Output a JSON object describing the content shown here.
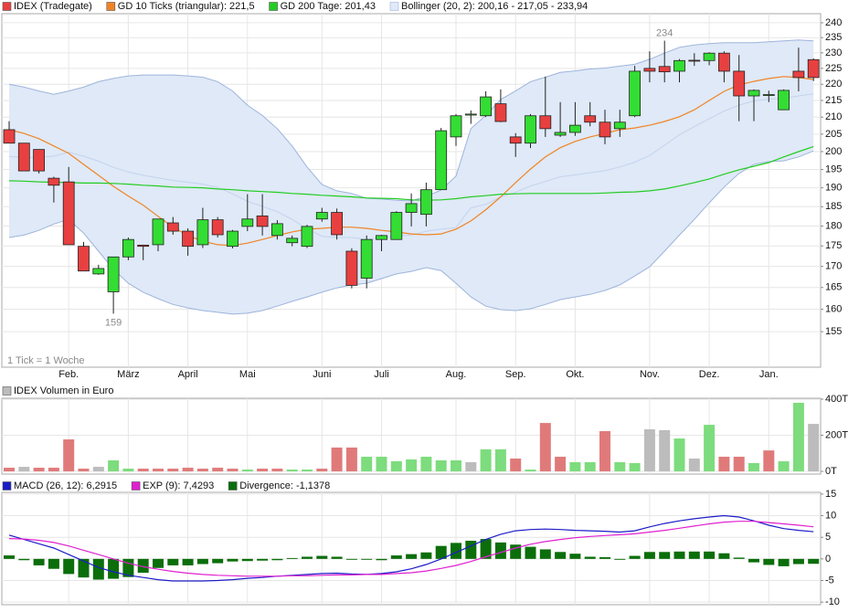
{
  "chart_data": [
    {
      "type": "candlestick",
      "log_scale": true,
      "grid": true,
      "annotate_extremes": true,
      "note": "1 Tick = 1 Woche",
      "categories": [
        null,
        null,
        null,
        null,
        "Feb.",
        null,
        null,
        null,
        "März",
        null,
        null,
        null,
        "April",
        null,
        null,
        null,
        "Mai",
        null,
        null,
        null,
        null,
        "Juni",
        null,
        null,
        null,
        "Juli",
        null,
        null,
        null,
        null,
        "Aug.",
        null,
        null,
        null,
        "Sep.",
        null,
        null,
        null,
        "Okt.",
        null,
        null,
        null,
        null,
        "Nov.",
        null,
        null,
        null,
        "Dez.",
        null,
        null,
        null,
        "Jan.",
        null,
        null,
        null
      ],
      "ylim": [
        147.4,
        243.1
      ],
      "yticks": [
        155,
        160,
        165,
        170,
        175,
        180,
        185,
        190,
        195,
        200,
        205,
        210,
        215,
        220,
        225,
        230,
        235,
        240
      ],
      "series": [
        {
          "name": "IDEX (Tradegate)",
          "kind": "candle",
          "up_color": "#33dd33",
          "down_color": "#e84040",
          "open": [
            206.3,
            202.4,
            200.6,
            192.6,
            191.6,
            174.9,
            168.2,
            164,
            172.3,
            175.2,
            175.3,
            180.8,
            178.7,
            175.3,
            181.6,
            174.9,
            179.9,
            182.6,
            177.6,
            175.8,
            174.9,
            181.8,
            183.5,
            173.7,
            167.2,
            176.6,
            176.6,
            183.5,
            183,
            189.5,
            204.2,
            210.6,
            210.4,
            214,
            204.2,
            202.4,
            210.4,
            204.7,
            205.5,
            210.4,
            208.5,
            206.6,
            210.4,
            225,
            225.6,
            224.1,
            227.6,
            227.5,
            229.9,
            224.1,
            216.4,
            216.6,
            212.2,
            224.1,
            227.8
          ],
          "high": [
            208.8,
            202.4,
            200.6,
            193,
            195.7,
            176,
            170.4,
            172.3,
            177.1,
            175.3,
            181.8,
            182.3,
            179.4,
            184.7,
            182.3,
            179,
            188.3,
            188.3,
            181.5,
            177.6,
            180.3,
            184.7,
            184.5,
            174.4,
            177.6,
            177.8,
            183.8,
            188.5,
            191.4,
            206.8,
            210.9,
            212,
            217.8,
            218.4,
            205.3,
            210.9,
            222.4,
            214.5,
            214.5,
            214.5,
            212.2,
            212.2,
            225.8,
            230.5,
            234,
            228,
            229.9,
            230.2,
            230.5,
            229.3,
            218.4,
            218,
            218.4,
            231.7,
            228.2
          ],
          "low": [
            202.4,
            194.6,
            193.9,
            186.1,
            175.3,
            168.9,
            168,
            159,
            171.5,
            171.5,
            173.7,
            177.8,
            172.6,
            174.5,
            177.1,
            174.4,
            178.7,
            177.6,
            176.6,
            174.9,
            174.5,
            181.1,
            176.6,
            164.8,
            164.8,
            173.7,
            176.6,
            179.9,
            179.9,
            189.5,
            201.6,
            208,
            210,
            208.5,
            198.5,
            201,
            204.2,
            204.2,
            204.5,
            207.3,
            202.1,
            204.2,
            210,
            220.6,
            220.6,
            220.6,
            225.8,
            226,
            220.6,
            208.8,
            208.8,
            214.5,
            212.2,
            217.8,
            221
          ],
          "close": [
            202.4,
            194.6,
            194.6,
            190.7,
            175.3,
            168.9,
            169.5,
            172.3,
            176.6,
            174.9,
            181.8,
            178.7,
            174.9,
            181.6,
            177.8,
            178.7,
            181.8,
            179.9,
            180.6,
            176.9,
            179.9,
            183.5,
            177.8,
            165.5,
            176.6,
            177.6,
            183.5,
            185.8,
            189.5,
            206,
            210.4,
            210.9,
            216.1,
            208.7,
            202.4,
            210.4,
            206.6,
            205.5,
            207.6,
            208.5,
            204.2,
            208.5,
            224.1,
            224.1,
            223.9,
            227.5,
            227.4,
            229.9,
            224.1,
            216.4,
            218.1,
            216.8,
            218.1,
            222.1,
            222.1
          ]
        },
        {
          "name": "GD 10 Ticks (triangular): 221,5",
          "kind": "line",
          "color": "#f08424",
          "values": [
            206.3,
            205.2,
            203.7,
            201.6,
            199.5,
            196.4,
            193.4,
            190.4,
            187.8,
            185.4,
            182.5,
            179.7,
            177.6,
            176.2,
            175.3,
            175.1,
            175.7,
            176.6,
            177.6,
            178.5,
            179.2,
            179.4,
            179.7,
            179.7,
            179.4,
            178.9,
            178.5,
            178,
            177.8,
            178,
            179.2,
            181.3,
            184.2,
            187.6,
            191.4,
            195.1,
            198.5,
            201.1,
            202.9,
            204.2,
            205.2,
            206.3,
            206.8,
            207.6,
            208.7,
            210.1,
            212.2,
            215,
            217.8,
            219.8,
            220.9,
            221.8,
            222.4,
            222.1,
            221.5
          ]
        },
        {
          "name": "GD 200 Tage: 201,43",
          "kind": "line",
          "color": "#22cc22",
          "values": [
            191.9,
            191.8,
            191.6,
            191.5,
            191.4,
            191.3,
            191.3,
            191.2,
            191,
            190.7,
            190.5,
            190.2,
            190.1,
            190,
            189.7,
            189.5,
            189.2,
            189,
            188.8,
            188.5,
            188.3,
            188,
            187.8,
            187.6,
            187.3,
            187.2,
            187.1,
            186.8,
            186.7,
            186.8,
            187.1,
            187.6,
            187.9,
            188.3,
            188.4,
            188.5,
            188.5,
            188.5,
            188.5,
            188.5,
            188.6,
            188.8,
            188.9,
            189.2,
            189.7,
            190.5,
            191.4,
            192.4,
            193.7,
            194.9,
            195.9,
            196.9,
            198.5,
            200,
            201.43
          ]
        },
        {
          "name": "Bollinger (20, 2): 200,16 - 217,05 - 233,94",
          "kind": "band",
          "color": "#9db4dc",
          "fill": "#dfe9f7",
          "middle_color": "#c3d3ee",
          "upper": [
            220,
            219.1,
            217.9,
            216.9,
            217.9,
            219.1,
            220.8,
            221.8,
            222.6,
            222.9,
            222.9,
            222.9,
            222.6,
            222.2,
            220.8,
            217.9,
            213.6,
            210.5,
            206.6,
            201.6,
            195.7,
            190.9,
            189.2,
            188.5,
            187.2,
            187,
            186.7,
            186.5,
            187.7,
            189.4,
            193.2,
            206.6,
            210.5,
            215.3,
            217.9,
            220.8,
            222.2,
            223.7,
            224.2,
            224.8,
            225.1,
            225.7,
            226.3,
            227.9,
            229.9,
            231.8,
            232.6,
            233,
            233.3,
            233.3,
            233.3,
            233.6,
            233.9,
            234.2,
            233.94
          ],
          "middle": [
            198.6,
            198.4,
            198.4,
            198.7,
            199.8,
            198.7,
            197.3,
            195.6,
            194.3,
            193.4,
            192.7,
            192,
            191.5,
            191,
            190.1,
            188.4,
            186.4,
            185.1,
            183.7,
            181.7,
            179.3,
            177.4,
            177.1,
            177.1,
            176.6,
            177.1,
            177.5,
            177.7,
            178.7,
            179.2,
            179.6,
            184.7,
            185.6,
            187.6,
            188.8,
            190.5,
            191.7,
            193,
            193.5,
            194.1,
            194.7,
            195.7,
            197,
            198.9,
            201.8,
            204.8,
            207.2,
            209.5,
            211.8,
            213.6,
            214.9,
            215.4,
            215.7,
            216.4,
            217.05
          ],
          "lower": [
            177.1,
            177.7,
            178.9,
            180.5,
            181.7,
            178.2,
            173.7,
            169.3,
            166,
            163.9,
            162.4,
            161.1,
            160.3,
            159.7,
            159.3,
            158.9,
            159.1,
            159.7,
            160.7,
            161.8,
            162.8,
            163.9,
            164.9,
            165.6,
            166,
            167.1,
            168.2,
            168.8,
            169.7,
            169,
            166,
            162.8,
            160.7,
            159.9,
            159.7,
            160.1,
            161.1,
            162.2,
            162.8,
            163.4,
            164.3,
            165.6,
            167.7,
            169.9,
            173.7,
            177.7,
            181.7,
            186,
            190.2,
            193.9,
            196.4,
            197.2,
            197.4,
            198.5,
            200.16
          ]
        }
      ]
    },
    {
      "type": "bar",
      "grid": true,
      "ylim": [
        -15,
        405
      ],
      "yticks": [
        {
          "value": 0,
          "label": "0T"
        },
        {
          "value": 200,
          "label": "200T"
        },
        {
          "value": 400,
          "label": "400T"
        }
      ],
      "series": [
        {
          "name": "IDEX Volumen in Euro",
          "color": "#bcbcbc",
          "values": [
            20,
            25,
            20,
            20,
            177,
            15,
            25,
            61,
            15,
            15,
            15,
            15,
            20,
            15,
            20,
            15,
            10,
            15,
            15,
            10,
            10,
            15,
            132,
            132,
            81,
            81,
            56,
            66,
            81,
            61,
            61,
            51,
            122,
            122,
            71,
            10,
            268,
            81,
            51,
            51,
            223,
            51,
            46,
            233,
            228,
            182,
            71,
            258,
            81,
            81,
            46,
            116,
            56,
            380,
            263
          ],
          "colors": [
            "#e07a7a",
            "#bcbcbc",
            "#e07a7a",
            "#e07a7a",
            "#e07a7a",
            "#e07a7a",
            "#bcbcbc",
            "#7ddc7d",
            "#7ddc7d",
            "#e07a7a",
            "#e07a7a",
            "#e07a7a",
            "#e07a7a",
            "#e07a7a",
            "#e07a7a",
            "#e07a7a",
            "#7ddc7d",
            "#e07a7a",
            "#e07a7a",
            "#7ddc7d",
            "#7ddc7d",
            "#e07a7a",
            "#e07a7a",
            "#e07a7a",
            "#7ddc7d",
            "#7ddc7d",
            "#7ddc7d",
            "#7ddc7d",
            "#7ddc7d",
            "#7ddc7d",
            "#7ddc7d",
            "#bcbcbc",
            "#7ddc7d",
            "#7ddc7d",
            "#e07a7a",
            "#7ddc7d",
            "#e07a7a",
            "#e07a7a",
            "#7ddc7d",
            "#7ddc7d",
            "#e07a7a",
            "#7ddc7d",
            "#7ddc7d",
            "#bcbcbc",
            "#bcbcbc",
            "#7ddc7d",
            "#bcbcbc",
            "#7ddc7d",
            "#e07a7a",
            "#e07a7a",
            "#7ddc7d",
            "#e07a7a",
            "#7ddc7d",
            "#7ddc7d",
            "#bcbcbc"
          ]
        }
      ]
    },
    {
      "type": "line",
      "grid": true,
      "ylim": [
        -10.6,
        15.4
      ],
      "yticks": [
        -10,
        -5,
        0,
        5,
        10,
        15
      ],
      "series": [
        {
          "name": "MACD (26, 12): 6,2915",
          "kind": "line",
          "color": "#1c1cc8",
          "values": [
            5.5,
            4.5,
            3.5,
            2.5,
            1,
            -0.5,
            -2,
            -3,
            -3.8,
            -4.3,
            -4.8,
            -5.1,
            -5.1,
            -5.1,
            -5,
            -4.8,
            -4.5,
            -4.3,
            -4,
            -3.8,
            -3.6,
            -3.4,
            -3.3,
            -3.5,
            -3.6,
            -3.4,
            -3,
            -2.3,
            -1.3,
            0,
            1.5,
            3,
            4.5,
            5.7,
            6.5,
            6.8,
            6.9,
            6.8,
            6.6,
            6.5,
            6.4,
            6.2,
            6.5,
            7.4,
            8.2,
            8.8,
            9.3,
            9.7,
            10,
            9.7,
            8.8,
            7.8,
            7,
            6.6,
            6.2915
          ]
        },
        {
          "name": "EXP (9): 7,4293",
          "kind": "line",
          "color": "#e020d0",
          "values": [
            4.7,
            4.6,
            4.3,
            3.8,
            3,
            2,
            1,
            0,
            -1,
            -1.8,
            -2.4,
            -2.9,
            -3.3,
            -3.6,
            -3.8,
            -3.9,
            -4,
            -4,
            -4,
            -3.9,
            -3.9,
            -3.8,
            -3.7,
            -3.7,
            -3.6,
            -3.6,
            -3.4,
            -3.2,
            -2.8,
            -2.2,
            -1.5,
            -0.6,
            0.5,
            1.5,
            2.5,
            3.4,
            4,
            4.5,
            4.9,
            5.2,
            5.4,
            5.6,
            5.8,
            6.2,
            6.6,
            7.1,
            7.6,
            8.1,
            8.5,
            8.7,
            8.7,
            8.4,
            8.1,
            7.8,
            7.4293
          ]
        },
        {
          "name": "Divergence: -1,1378",
          "kind": "bar",
          "color": "#0b6e0b",
          "values": [
            0.8,
            -0.3,
            -1.5,
            -2.3,
            -3.5,
            -4.3,
            -4.8,
            -4.6,
            -4.2,
            -3.2,
            -2.1,
            -1.5,
            -1.5,
            -1.2,
            -1,
            -0.6,
            -0.5,
            -0.4,
            -0.3,
            0.2,
            0.5,
            0.7,
            0.5,
            -0.2,
            -0.2,
            -0.3,
            0.8,
            1.1,
            1.5,
            3,
            3.7,
            4.2,
            4.6,
            3.8,
            3.3,
            2.8,
            2.2,
            1.6,
            1.2,
            0.5,
            0.4,
            -0.2,
            0.7,
            1.6,
            1.6,
            1.7,
            1.7,
            1.7,
            1.3,
            0.3,
            -0.8,
            -1.4,
            -1.7,
            -1.2,
            -1.1378
          ]
        }
      ]
    }
  ]
}
